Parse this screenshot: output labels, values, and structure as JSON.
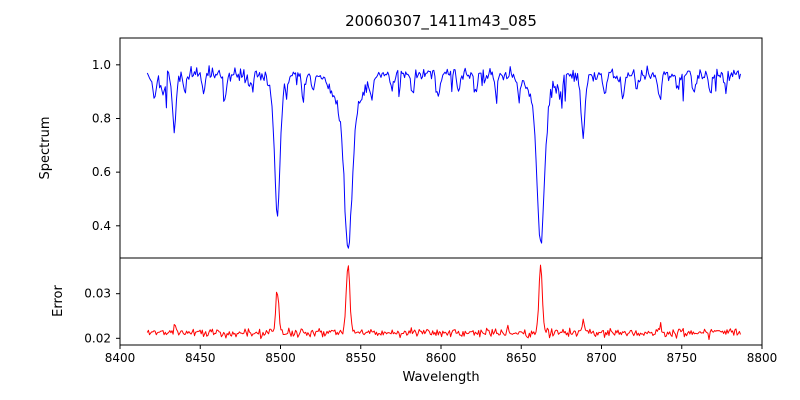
{
  "chart_data": {
    "type": "line",
    "title": "20060307_1411m43_085",
    "xlabel": "Wavelength",
    "x_range": [
      8400,
      8800
    ],
    "x_data_range": [
      8417,
      8787
    ],
    "xticks": [
      8400,
      8450,
      8500,
      8550,
      8600,
      8650,
      8700,
      8750,
      8800
    ],
    "xtick_labels": [
      "8400",
      "8450",
      "8500",
      "8550",
      "8600",
      "8650",
      "8700",
      "8750",
      "8800"
    ],
    "sample_step": 0.7,
    "noise_seed": 20060307,
    "legend": "none",
    "grid": false,
    "panels": [
      {
        "name": "spectrum",
        "ylabel": "Spectrum",
        "color": "#0000ff",
        "ylim": [
          0.28,
          1.1
        ],
        "yticks": [
          0.4,
          0.6,
          0.8,
          1.0
        ],
        "ytick_labels": [
          "0.4",
          "0.6",
          "0.8",
          "1.0"
        ],
        "continuum": 0.965,
        "noise_sigma": 0.013,
        "dip_probability": 0.055,
        "dip_max": 0.09,
        "absorption_lines": [
          {
            "center": 8498.0,
            "depth": 0.44,
            "sigma": 1.5
          },
          {
            "center": 8498.0,
            "depth": 0.11,
            "sigma": 4.0
          },
          {
            "center": 8542.1,
            "depth": 0.5,
            "sigma": 2.3
          },
          {
            "center": 8542.1,
            "depth": 0.17,
            "sigma": 7.5
          },
          {
            "center": 8662.1,
            "depth": 0.5,
            "sigma": 2.1
          },
          {
            "center": 8662.1,
            "depth": 0.15,
            "sigma": 6.0
          },
          {
            "center": 8433.9,
            "depth": 0.21,
            "sigma": 1.2
          },
          {
            "center": 8688.6,
            "depth": 0.24,
            "sigma": 1.3
          },
          {
            "center": 8421.5,
            "depth": 0.08,
            "sigma": 1.0
          },
          {
            "center": 8427.0,
            "depth": 0.1,
            "sigma": 1.1
          },
          {
            "center": 8440.3,
            "depth": 0.07,
            "sigma": 0.9
          },
          {
            "center": 8452.0,
            "depth": 0.06,
            "sigma": 1.0
          },
          {
            "center": 8465.5,
            "depth": 0.09,
            "sigma": 1.1
          },
          {
            "center": 8481.0,
            "depth": 0.06,
            "sigma": 0.9
          },
          {
            "center": 8514.2,
            "depth": 0.1,
            "sigma": 1.0
          },
          {
            "center": 8520.5,
            "depth": 0.07,
            "sigma": 0.9
          },
          {
            "center": 8556.8,
            "depth": 0.06,
            "sigma": 1.0
          },
          {
            "center": 8570.0,
            "depth": 0.05,
            "sigma": 0.9
          },
          {
            "center": 8582.3,
            "depth": 0.08,
            "sigma": 1.0
          },
          {
            "center": 8598.5,
            "depth": 0.09,
            "sigma": 1.1
          },
          {
            "center": 8611.0,
            "depth": 0.06,
            "sigma": 0.9
          },
          {
            "center": 8621.7,
            "depth": 0.07,
            "sigma": 1.0
          },
          {
            "center": 8634.0,
            "depth": 0.05,
            "sigma": 0.9
          },
          {
            "center": 8648.5,
            "depth": 0.08,
            "sigma": 1.0
          },
          {
            "center": 8674.3,
            "depth": 0.07,
            "sigma": 0.9
          },
          {
            "center": 8702.0,
            "depth": 0.06,
            "sigma": 1.0
          },
          {
            "center": 8713.5,
            "depth": 0.09,
            "sigma": 1.1
          },
          {
            "center": 8722.0,
            "depth": 0.06,
            "sigma": 0.9
          },
          {
            "center": 8736.4,
            "depth": 0.1,
            "sigma": 1.1
          },
          {
            "center": 8747.0,
            "depth": 0.06,
            "sigma": 0.9
          },
          {
            "center": 8757.5,
            "depth": 0.07,
            "sigma": 1.0
          },
          {
            "center": 8768.0,
            "depth": 0.08,
            "sigma": 1.0
          },
          {
            "center": 8777.5,
            "depth": 0.06,
            "sigma": 0.9
          }
        ]
      },
      {
        "name": "error",
        "ylabel": "Error",
        "color": "#ff0000",
        "ylim": [
          0.0185,
          0.038
        ],
        "yticks": [
          0.02,
          0.03
        ],
        "ytick_labels": [
          "0.02",
          "0.03"
        ],
        "baseline": 0.0212,
        "noise_sigma": 0.00045,
        "spike_probability": 0.04,
        "spike_max": 0.0012,
        "emission_spikes": [
          {
            "center": 8498.0,
            "height": 0.0095,
            "sigma": 1.0
          },
          {
            "center": 8542.1,
            "height": 0.0158,
            "sigma": 1.1
          },
          {
            "center": 8662.1,
            "height": 0.015,
            "sigma": 1.0
          },
          {
            "center": 8688.6,
            "height": 0.0028,
            "sigma": 0.9
          },
          {
            "center": 8433.9,
            "height": 0.0018,
            "sigma": 0.9
          },
          {
            "center": 8736.4,
            "height": 0.0012,
            "sigma": 0.9
          },
          {
            "center": 8514.2,
            "height": 0.001,
            "sigma": 0.8
          }
        ]
      }
    ]
  }
}
